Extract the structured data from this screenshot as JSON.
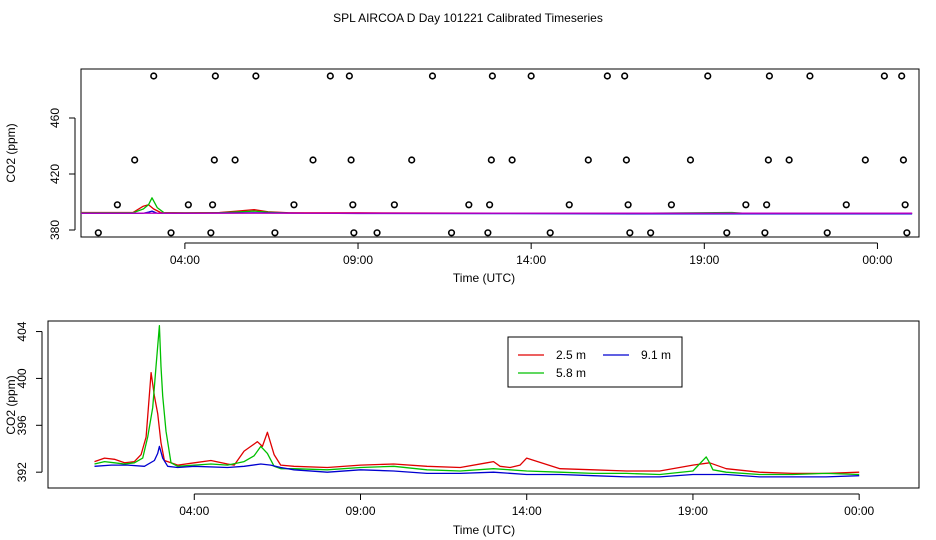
{
  "title": "SPL AIRCOA D  Day 101221  Calibrated Timeseries",
  "colors": {
    "red": "#e00000",
    "green": "#00c000",
    "blue": "#0000d0",
    "purple": "#c000c0",
    "axis": "#000000"
  },
  "chart_data": [
    {
      "type": "scatter",
      "xlabel": "Time (UTC)",
      "ylabel": "CO2 (ppm)",
      "xlim": [
        0.0,
        24.2
      ],
      "ylim": [
        375,
        495
      ],
      "x_ticks": [
        3,
        8,
        13,
        18,
        23
      ],
      "x_tick_labels": [
        "04:00",
        "09:00",
        "14:00",
        "19:00",
        "00:00"
      ],
      "y_ticks": [
        380,
        420,
        460
      ],
      "y_tick_labels": [
        "380",
        "420",
        "460"
      ],
      "calibration_points": [
        {
          "x": 0.5,
          "y": 378
        },
        {
          "x": 1.05,
          "y": 398
        },
        {
          "x": 1.55,
          "y": 430
        },
        {
          "x": 2.1,
          "y": 490
        },
        {
          "x": 2.6,
          "y": 378
        },
        {
          "x": 3.1,
          "y": 398
        },
        {
          "x": 3.75,
          "y": 378
        },
        {
          "x": 3.8,
          "y": 398
        },
        {
          "x": 3.85,
          "y": 430
        },
        {
          "x": 3.88,
          "y": 490
        },
        {
          "x": 4.45,
          "y": 430
        },
        {
          "x": 5.05,
          "y": 490
        },
        {
          "x": 5.6,
          "y": 378
        },
        {
          "x": 6.15,
          "y": 398
        },
        {
          "x": 6.7,
          "y": 430
        },
        {
          "x": 7.2,
          "y": 490
        },
        {
          "x": 7.75,
          "y": 490
        },
        {
          "x": 7.8,
          "y": 430
        },
        {
          "x": 7.85,
          "y": 398
        },
        {
          "x": 7.88,
          "y": 378
        },
        {
          "x": 8.55,
          "y": 378
        },
        {
          "x": 9.05,
          "y": 398
        },
        {
          "x": 9.55,
          "y": 430
        },
        {
          "x": 10.15,
          "y": 490
        },
        {
          "x": 10.7,
          "y": 378
        },
        {
          "x": 11.2,
          "y": 398
        },
        {
          "x": 11.75,
          "y": 378
        },
        {
          "x": 11.8,
          "y": 398
        },
        {
          "x": 11.85,
          "y": 430
        },
        {
          "x": 11.88,
          "y": 490
        },
        {
          "x": 12.45,
          "y": 430
        },
        {
          "x": 13.0,
          "y": 490
        },
        {
          "x": 13.55,
          "y": 378
        },
        {
          "x": 14.1,
          "y": 398
        },
        {
          "x": 14.65,
          "y": 430
        },
        {
          "x": 15.2,
          "y": 490
        },
        {
          "x": 15.7,
          "y": 490
        },
        {
          "x": 15.75,
          "y": 430
        },
        {
          "x": 15.8,
          "y": 398
        },
        {
          "x": 15.85,
          "y": 378
        },
        {
          "x": 16.45,
          "y": 378
        },
        {
          "x": 17.05,
          "y": 398
        },
        {
          "x": 17.6,
          "y": 430
        },
        {
          "x": 18.1,
          "y": 490
        },
        {
          "x": 18.65,
          "y": 378
        },
        {
          "x": 19.2,
          "y": 398
        },
        {
          "x": 19.75,
          "y": 378
        },
        {
          "x": 19.8,
          "y": 398
        },
        {
          "x": 19.85,
          "y": 430
        },
        {
          "x": 19.88,
          "y": 490
        },
        {
          "x": 20.45,
          "y": 430
        },
        {
          "x": 21.05,
          "y": 490
        },
        {
          "x": 21.55,
          "y": 378
        },
        {
          "x": 22.1,
          "y": 398
        },
        {
          "x": 22.65,
          "y": 430
        },
        {
          "x": 23.2,
          "y": 490
        },
        {
          "x": 23.7,
          "y": 490
        },
        {
          "x": 23.75,
          "y": 430
        },
        {
          "x": 23.8,
          "y": 398
        },
        {
          "x": 23.85,
          "y": 378
        }
      ],
      "series": [
        {
          "name": "2.5 m",
          "color": "#e00000",
          "x": [
            0,
            1.5,
            1.8,
            1.95,
            2.1,
            2.3,
            3.0,
            4.0,
            4.5,
            5.0,
            5.4,
            6.0,
            8,
            12,
            16,
            20,
            24.0
          ],
          "y": [
            392.5,
            392.5,
            397,
            398,
            395,
            392.5,
            392.3,
            392.5,
            393.5,
            394.5,
            393,
            392.3,
            392.3,
            392.0,
            392.0,
            391.8,
            392.0
          ]
        },
        {
          "name": "5.8 m",
          "color": "#00c000",
          "x": [
            0,
            1.5,
            1.8,
            1.95,
            2.05,
            2.2,
            2.4,
            3.0,
            4.0,
            4.6,
            5.0,
            5.4,
            6.0,
            8,
            12,
            16,
            18.8,
            19.1,
            20,
            24.0
          ],
          "y": [
            392.3,
            392.3,
            395,
            398,
            403,
            396,
            392.3,
            392.2,
            392.3,
            393,
            393.5,
            392.8,
            392.1,
            392.1,
            391.9,
            391.9,
            392.5,
            392.0,
            391.7,
            391.8
          ]
        },
        {
          "name": "9.1 m",
          "color": "#0000d0",
          "x": [
            0,
            1.8,
            1.95,
            2.05,
            2.2,
            3.0,
            5.0,
            8,
            12,
            16,
            20,
            24.0
          ],
          "y": [
            391.9,
            391.9,
            392.8,
            393.5,
            392.0,
            391.9,
            392.3,
            391.8,
            391.7,
            391.6,
            391.6,
            391.6
          ]
        },
        {
          "name": "purple",
          "color": "#c000c0",
          "x": [
            0,
            24.0
          ],
          "y": [
            392.0,
            392.0
          ]
        }
      ]
    },
    {
      "type": "line",
      "xlabel": "Time (UTC)",
      "ylabel": "CO2 (ppm)",
      "xlim": [
        -1.4,
        24.8
      ],
      "ylim": [
        390.65,
        404.9
      ],
      "x_ticks": [
        3,
        8,
        13,
        18,
        23
      ],
      "x_tick_labels": [
        "04:00",
        "09:00",
        "14:00",
        "19:00",
        "00:00"
      ],
      "y_ticks": [
        392,
        396,
        400,
        404
      ],
      "y_tick_labels": [
        "392",
        "396",
        "400",
        "404"
      ],
      "legend": {
        "placement": "top-right",
        "entries": [
          {
            "label": "2.5 m",
            "color": "#e00000"
          },
          {
            "label": "5.8 m",
            "color": "#00c000"
          },
          {
            "label": "9.1 m",
            "color": "#0000d0"
          }
        ]
      },
      "series": [
        {
          "name": "2.5 m",
          "color": "#e00000",
          "x": [
            0,
            0.3,
            0.6,
            0.9,
            1.2,
            1.4,
            1.55,
            1.7,
            1.8,
            1.9,
            2.0,
            2.1,
            2.3,
            2.5,
            3.0,
            3.5,
            4.0,
            4.2,
            4.5,
            4.7,
            4.9,
            5.05,
            5.2,
            5.4,
            5.6,
            6.0,
            7.0,
            8.0,
            9.0,
            10.0,
            11.0,
            11.8,
            12.0,
            12.2,
            12.5,
            12.8,
            13.0,
            14.0,
            15.0,
            16.0,
            17.0,
            18.0,
            18.5,
            19.0,
            20.0,
            21.0,
            22.0,
            23.0
          ],
          "y": [
            392.9,
            393.2,
            393.1,
            392.8,
            392.9,
            393.5,
            395,
            400.5,
            398.5,
            397,
            394.5,
            393,
            392.8,
            392.6,
            392.8,
            393.0,
            392.7,
            392.6,
            393.8,
            394.2,
            394.6,
            394.2,
            395.4,
            393.5,
            392.6,
            392.5,
            392.4,
            392.6,
            392.7,
            392.5,
            392.4,
            392.8,
            392.9,
            392.5,
            392.4,
            392.6,
            393.2,
            392.3,
            392.2,
            392.1,
            392.1,
            392.6,
            392.8,
            392.3,
            392.0,
            391.9,
            391.9,
            392.0
          ]
        },
        {
          "name": "5.8 m",
          "color": "#00c000",
          "x": [
            0,
            0.3,
            0.6,
            0.9,
            1.2,
            1.45,
            1.6,
            1.75,
            1.85,
            1.95,
            2.0,
            2.05,
            2.15,
            2.3,
            2.5,
            3.0,
            3.5,
            4.0,
            4.5,
            4.8,
            5.0,
            5.2,
            5.4,
            5.6,
            6.0,
            7.0,
            8.0,
            9.0,
            10.0,
            11.0,
            12.0,
            13.0,
            14.0,
            15.0,
            16.0,
            17.0,
            18.0,
            18.4,
            18.5,
            18.6,
            19.0,
            20.0,
            21.0,
            22.0,
            23.0
          ],
          "y": [
            392.7,
            392.9,
            392.8,
            392.7,
            392.8,
            393.2,
            395,
            397.5,
            401,
            404.5,
            401,
            398.5,
            395.5,
            392.8,
            392.5,
            392.6,
            392.7,
            392.6,
            392.9,
            393.4,
            394.2,
            393.6,
            392.5,
            392.3,
            392.3,
            392.2,
            392.4,
            392.5,
            392.2,
            392.1,
            392.3,
            392.1,
            392.0,
            391.9,
            391.9,
            391.8,
            392.1,
            393.3,
            392.8,
            392.2,
            392.0,
            391.8,
            391.8,
            391.9,
            391.8
          ]
        },
        {
          "name": "9.1 m",
          "color": "#0000d0",
          "x": [
            0,
            0.5,
            1.0,
            1.5,
            1.8,
            1.9,
            1.95,
            2.05,
            2.2,
            2.5,
            3.0,
            4.0,
            4.5,
            5.0,
            5.3,
            5.6,
            6.0,
            7.0,
            8.0,
            9.0,
            10.0,
            11.0,
            12.0,
            13.0,
            14.0,
            15.0,
            16.0,
            17.0,
            18.0,
            19.0,
            20.0,
            21.0,
            22.0,
            23.0
          ],
          "y": [
            392.5,
            392.6,
            392.6,
            392.5,
            393.0,
            393.6,
            394.2,
            393.2,
            392.5,
            392.4,
            392.5,
            392.4,
            392.5,
            392.7,
            392.6,
            392.4,
            392.2,
            392.0,
            392.2,
            392.1,
            391.9,
            391.9,
            392.0,
            391.8,
            391.8,
            391.7,
            391.6,
            391.6,
            391.8,
            391.8,
            391.6,
            391.6,
            391.6,
            391.7
          ]
        }
      ]
    }
  ]
}
